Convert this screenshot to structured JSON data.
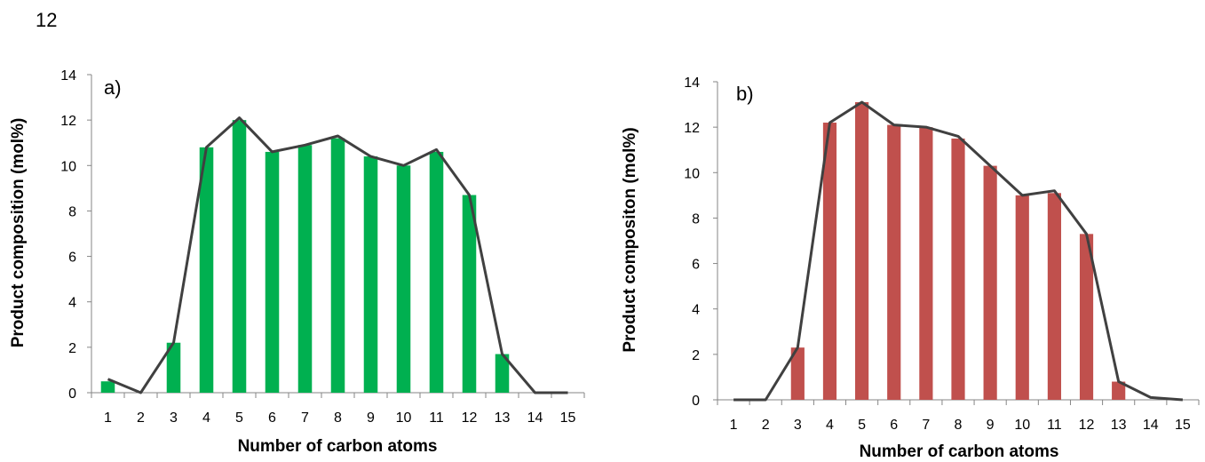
{
  "page_number": "12",
  "chart_data": [
    {
      "type": "bar",
      "panel_label": "a)",
      "xlabel": "Number of carbon atoms",
      "ylabel": "Product composition (mol%)",
      "ylim": [
        0,
        14
      ],
      "yticks": [
        0,
        2,
        4,
        6,
        8,
        10,
        12,
        14
      ],
      "categories": [
        "1",
        "2",
        "3",
        "4",
        "5",
        "6",
        "7",
        "8",
        "9",
        "10",
        "11",
        "12",
        "13",
        "14",
        "15"
      ],
      "bar_color": "#00b050",
      "line_color": "#404040",
      "series": [
        {
          "type": "bar",
          "values": [
            0.5,
            0,
            2.2,
            10.8,
            12.0,
            10.6,
            10.9,
            11.2,
            10.4,
            10.0,
            10.6,
            8.7,
            1.7,
            0,
            0
          ]
        },
        {
          "type": "line",
          "values": [
            0.6,
            0,
            2.2,
            10.8,
            12.1,
            10.6,
            10.9,
            11.3,
            10.4,
            10.0,
            10.7,
            8.7,
            1.7,
            0,
            0
          ]
        }
      ]
    },
    {
      "type": "bar",
      "panel_label": "b)",
      "xlabel": "Number of carbon atoms",
      "ylabel": "Product compositon (mol%)",
      "ylim": [
        0,
        14
      ],
      "yticks": [
        0,
        2,
        4,
        6,
        8,
        10,
        12,
        14
      ],
      "categories": [
        "1",
        "2",
        "3",
        "4",
        "5",
        "6",
        "7",
        "8",
        "9",
        "10",
        "11",
        "12",
        "13",
        "14",
        "15"
      ],
      "bar_color": "#c0504d",
      "line_color": "#404040",
      "series": [
        {
          "type": "bar",
          "values": [
            0,
            0,
            2.3,
            12.2,
            13.1,
            12.1,
            12.0,
            11.5,
            10.3,
            9.0,
            9.1,
            7.3,
            0.8,
            0,
            0
          ]
        },
        {
          "type": "line",
          "values": [
            0,
            0,
            2.3,
            12.2,
            13.1,
            12.1,
            12.0,
            11.6,
            10.3,
            9.0,
            9.2,
            7.3,
            0.8,
            0.1,
            0
          ]
        }
      ]
    }
  ]
}
